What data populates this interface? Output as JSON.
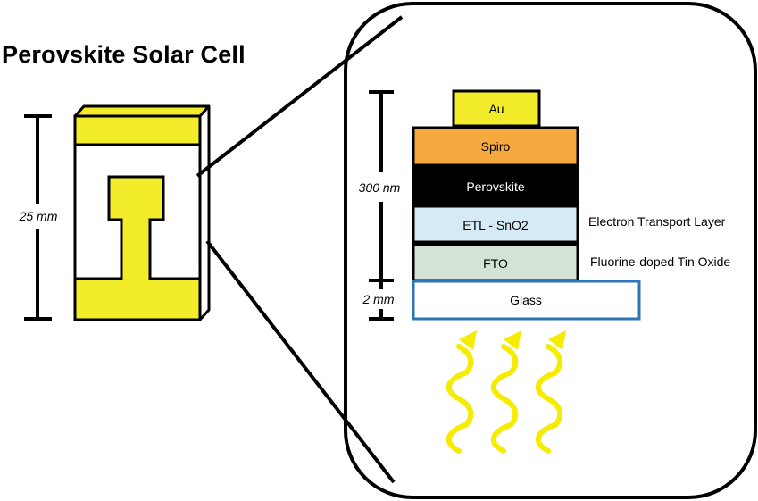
{
  "title": "Perovskite Solar Cell",
  "device": {
    "height_label": "25 mm"
  },
  "zoom": {
    "stack_height_label": "300 nm",
    "glass_thickness_label": "2 mm",
    "layers": [
      {
        "name": "Au",
        "color": "#f2ec2b",
        "text_color": "#000000",
        "description": ""
      },
      {
        "name": "Spiro",
        "color": "#f6a93e",
        "text_color": "#000000",
        "description": ""
      },
      {
        "name": "Perovskite",
        "color": "#000000",
        "text_color": "#ffffff",
        "description": ""
      },
      {
        "name": "ETL - SnO2",
        "color": "#d5eaf5",
        "text_color": "#000000",
        "description": "Electron Transport Layer"
      },
      {
        "name": "FTO",
        "color": "#d3e4d6",
        "text_color": "#000000",
        "description": "Fluorine-doped Tin Oxide"
      },
      {
        "name": "Glass",
        "color": "#ffffff",
        "text_color": "#000000",
        "description": "",
        "border_color": "#2e75b6"
      }
    ],
    "light_color": "#f5ec00",
    "light_rays": 3
  }
}
